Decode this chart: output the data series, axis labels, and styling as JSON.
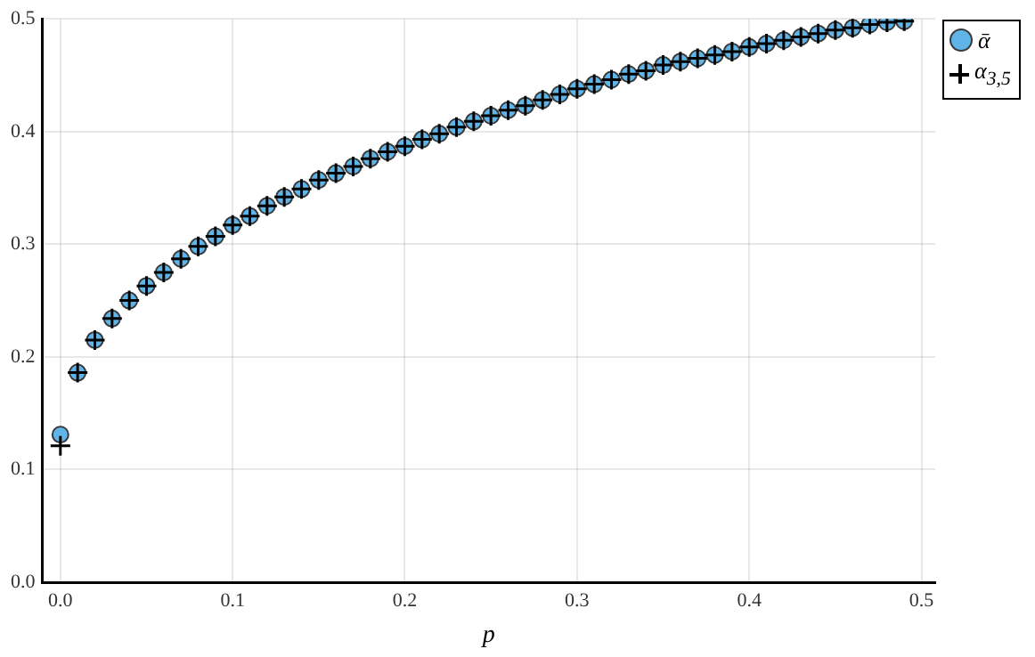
{
  "chart_data": {
    "type": "scatter",
    "xlabel": "p",
    "x": [
      0,
      0.01,
      0.02,
      0.03,
      0.04,
      0.05,
      0.06,
      0.07,
      0.08,
      0.09,
      0.1,
      0.11,
      0.12,
      0.13,
      0.14,
      0.15,
      0.16,
      0.17,
      0.18,
      0.19,
      0.2,
      0.21,
      0.22,
      0.23,
      0.24,
      0.25,
      0.26,
      0.27,
      0.28,
      0.29,
      0.3,
      0.31,
      0.32,
      0.33,
      0.34,
      0.35,
      0.36,
      0.37,
      0.38,
      0.39,
      0.4,
      0.41,
      0.42,
      0.43,
      0.44,
      0.45,
      0.46,
      0.47,
      0.48,
      0.49
    ],
    "series": [
      {
        "name": "ᾱ",
        "color": "#5fb4e8",
        "marker": "circle",
        "values": [
          0.131,
          0.186,
          0.215,
          0.234,
          0.25,
          0.263,
          0.275,
          0.287,
          0.298,
          0.307,
          0.317,
          0.325,
          0.334,
          0.342,
          0.349,
          0.357,
          0.363,
          0.369,
          0.376,
          0.382,
          0.387,
          0.393,
          0.398,
          0.404,
          0.409,
          0.414,
          0.419,
          0.423,
          0.428,
          0.433,
          0.438,
          0.442,
          0.446,
          0.451,
          0.454,
          0.459,
          0.462,
          0.465,
          0.468,
          0.471,
          0.475,
          0.478,
          0.481,
          0.484,
          0.487,
          0.49,
          0.492,
          0.495,
          0.497,
          0.498
        ]
      },
      {
        "name": "α$_{3,5}$",
        "color": "#000000",
        "marker": "cross",
        "values": [
          0.121,
          0.186,
          0.215,
          0.234,
          0.25,
          0.263,
          0.275,
          0.287,
          0.298,
          0.307,
          0.317,
          0.325,
          0.334,
          0.342,
          0.349,
          0.357,
          0.363,
          0.369,
          0.376,
          0.382,
          0.387,
          0.393,
          0.398,
          0.404,
          0.409,
          0.414,
          0.419,
          0.423,
          0.428,
          0.433,
          0.438,
          0.442,
          0.446,
          0.451,
          0.454,
          0.459,
          0.462,
          0.465,
          0.468,
          0.471,
          0.475,
          0.478,
          0.481,
          0.484,
          0.487,
          0.49,
          0.492,
          0.495,
          0.497,
          0.498
        ]
      }
    ],
    "xlim": [
      -0.0105,
      0.508
    ],
    "ylim": [
      0,
      0.5
    ],
    "xticks": [
      {
        "value": 0,
        "label": "0.0"
      },
      0.1,
      0.2,
      0.3,
      0.4,
      0.5
    ],
    "yticks": [
      {
        "value": 0,
        "label": "0.0"
      },
      0.1,
      0.2,
      0.3,
      0.4,
      0.5
    ],
    "grid": true,
    "legend": "top right"
  }
}
